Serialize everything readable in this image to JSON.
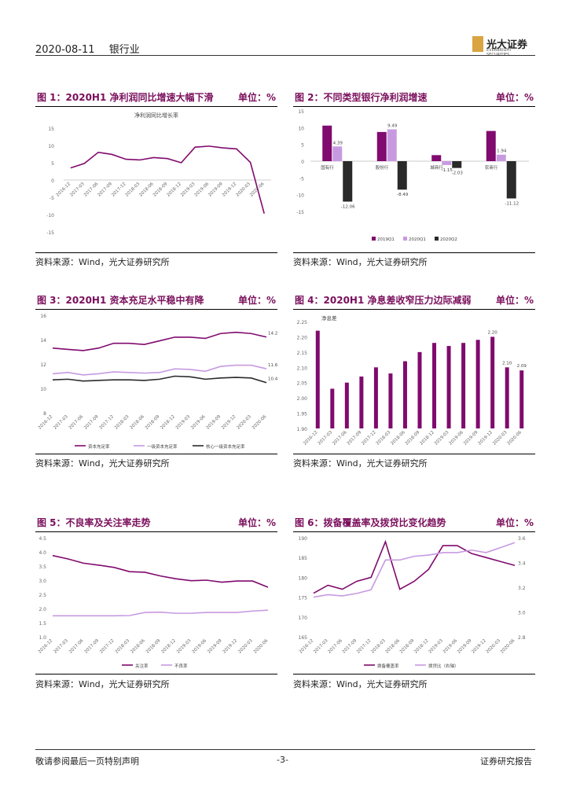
{
  "header": {
    "date": "2020-08-11",
    "industry": "银行业"
  },
  "logo": {
    "name": "光大证券",
    "en": "EVERBRIGHT SECURITIES"
  },
  "footer": {
    "left": "敬请参阅最后一页特别声明",
    "page": "-3-",
    "right": "证券研究报告"
  },
  "source_text": "资料来源：Wind，光大证券研究所",
  "colors": {
    "purple": "#800a6e",
    "light": "#c79ae0",
    "dark": "#2a2a2a",
    "title": "#7a0f5c"
  },
  "figures": [
    {
      "title": "图 1：2020H1 净利润同比增速大幅下滑",
      "unit": "单位：%",
      "chart_data": {
        "type": "line",
        "subtitle": "净利润同比增长率",
        "categories": [
          "2016-12",
          "2017-03",
          "2017-06",
          "2017-09",
          "2017-12",
          "2018-03",
          "2018-06",
          "2018-09",
          "2018-12",
          "2019-03",
          "2019-06",
          "2019-09",
          "2019-12",
          "2020-03",
          "2020-06"
        ],
        "series": [
          {
            "values": [
              3.5,
              4.8,
              8.0,
              7.4,
              6.0,
              5.8,
              6.5,
              6.2,
              5.0,
              9.5,
              9.8,
              9.3,
              9.0,
              5.1,
              -9.7
            ]
          }
        ],
        "ylim": [
          -15,
          15
        ],
        "yticks": [
          -15,
          -10,
          -5,
          0,
          5,
          10,
          15
        ]
      }
    },
    {
      "title": "图 2：不同类型银行净利润增速",
      "unit": "单位：%",
      "chart_data": {
        "type": "bar",
        "categories": [
          "国有行",
          "股份行",
          "城商行",
          "农商行"
        ],
        "series": [
          {
            "name": "2019Q1",
            "values": [
              10.6,
              8.7,
              1.8,
              9.0
            ]
          },
          {
            "name": "2020Q1",
            "values": [
              4.39,
              9.49,
              -1.15,
              1.94
            ]
          },
          {
            "name": "2020Q2",
            "values": [
              -12.06,
              -8.49,
              -2.03,
              -11.12
            ]
          }
        ],
        "labels": [
          [
            "",
            "4.39",
            "-12.06"
          ],
          [
            "",
            "9.49",
            "-8.49"
          ],
          [
            "",
            "-1.15",
            "-2.03"
          ],
          [
            "",
            "1.94",
            "-11.12"
          ]
        ],
        "ylim": [
          -15,
          15
        ],
        "yticks": [
          -15,
          -10,
          -5,
          0,
          5,
          10,
          15
        ]
      }
    },
    {
      "title": "图 3：2020H1 资本充足水平稳中有降",
      "unit": "单位：%",
      "chart_data": {
        "type": "line",
        "categories": [
          "2016-12",
          "2017-03",
          "2017-06",
          "2017-09",
          "2017-12",
          "2018-03",
          "2018-06",
          "2018-09",
          "2018-12",
          "2019-03",
          "2019-06",
          "2019-09",
          "2019-12",
          "2020-03",
          "2020-06"
        ],
        "series": [
          {
            "name": "资本充足率",
            "values": [
              13.3,
              13.2,
              13.1,
              13.3,
              13.7,
              13.7,
              13.6,
              13.9,
              14.2,
              14.2,
              14.1,
              14.5,
              14.6,
              14.5,
              14.21
            ]
          },
          {
            "name": "一级资本充足率",
            "values": [
              11.2,
              11.3,
              11.1,
              11.2,
              11.35,
              11.3,
              11.25,
              11.3,
              11.6,
              11.55,
              11.4,
              11.8,
              11.9,
              11.9,
              11.61
            ]
          },
          {
            "name": "核心一级资本充足率",
            "values": [
              10.7,
              10.75,
              10.6,
              10.65,
              10.7,
              10.7,
              10.65,
              10.75,
              11.0,
              10.95,
              10.75,
              10.85,
              10.9,
              10.85,
              10.47
            ]
          }
        ],
        "end_labels": [
          "14.21",
          "11.61",
          "10.47"
        ],
        "ylim": [
          8,
          16
        ],
        "yticks": [
          8,
          10,
          12,
          14,
          16
        ]
      }
    },
    {
      "title": "图 4：2020H1 净息差收窄压力边际减弱",
      "unit": "单位：%",
      "chart_data": {
        "type": "bar",
        "subtitle": "净息差",
        "categories": [
          "2016-12",
          "2017-03",
          "2017-06",
          "2017-09",
          "2017-12",
          "2018-03",
          "2018-06",
          "2018-09",
          "2018-12",
          "2019-03",
          "2019-06",
          "2019-09",
          "2019-12",
          "2020-03",
          "2020-06"
        ],
        "values": [
          2.22,
          2.03,
          2.05,
          2.07,
          2.1,
          2.08,
          2.12,
          2.15,
          2.18,
          2.17,
          2.18,
          2.19,
          2.2,
          2.1,
          2.09
        ],
        "labels": [
          "",
          "",
          "",
          "",
          "",
          "",
          "",
          "",
          "",
          "",
          "",
          "",
          "2.20",
          "2.10",
          "2.09"
        ],
        "ylim": [
          1.9,
          2.25
        ],
        "yticks": [
          1.9,
          1.95,
          2.0,
          2.05,
          2.1,
          2.15,
          2.2,
          2.25
        ]
      }
    },
    {
      "title": "图 5：不良率及关注率走势",
      "unit": "单位：%",
      "chart_data": {
        "type": "line",
        "categories": [
          "2016-12",
          "2017-03",
          "2017-06",
          "2017-09",
          "2017-12",
          "2018-03",
          "2018-06",
          "2018-09",
          "2018-12",
          "2019-03",
          "2019-06",
          "2019-09",
          "2019-12",
          "2020-03",
          "2020-06"
        ],
        "series": [
          {
            "name": "关注率",
            "values": [
              3.87,
              3.75,
              3.6,
              3.53,
              3.45,
              3.3,
              3.28,
              3.15,
              3.05,
              2.98,
              3.0,
              2.93,
              2.97,
              2.97,
              2.75
            ]
          },
          {
            "name": "不良率",
            "values": [
              1.74,
              1.74,
              1.74,
              1.74,
              1.74,
              1.75,
              1.86,
              1.87,
              1.83,
              1.83,
              1.86,
              1.86,
              1.86,
              1.91,
              1.94
            ]
          }
        ],
        "ylim": [
          1.0,
          4.5
        ],
        "yticks": [
          1.0,
          1.5,
          2.0,
          2.5,
          3.0,
          3.5,
          4.0,
          4.5
        ]
      }
    },
    {
      "title": "图 6：拨备覆盖率及拨贷比变化趋势",
      "unit": "单位：%",
      "chart_data": {
        "type": "line",
        "categories": [
          "2016-12",
          "2017-03",
          "2017-06",
          "2017-09",
          "2017-12",
          "2018-03",
          "2018-06",
          "2018-09",
          "2018-12",
          "2019-03",
          "2019-06",
          "2019-09",
          "2019-12",
          "2020-03",
          "2020-06"
        ],
        "series": [
          {
            "name": "拨备覆盖率",
            "axis": "left",
            "values": [
              176,
              178,
              177,
              179,
              180,
              189,
              177,
              179,
              182,
              188,
              188,
              186,
              185,
              184,
              183
            ]
          },
          {
            "name": "拨贷比（右轴）",
            "axis": "right",
            "values": [
              3.12,
              3.14,
              3.13,
              3.15,
              3.18,
              3.42,
              3.42,
              3.45,
              3.46,
              3.48,
              3.48,
              3.5,
              3.48,
              3.52,
              3.56
            ]
          }
        ],
        "ylim": [
          165,
          190
        ],
        "yticks": [
          165,
          170,
          175,
          180,
          185,
          190
        ],
        "y2lim": [
          2.8,
          3.6
        ],
        "y2ticks": [
          2.8,
          3.0,
          3.2,
          3.4,
          3.6
        ]
      }
    }
  ]
}
